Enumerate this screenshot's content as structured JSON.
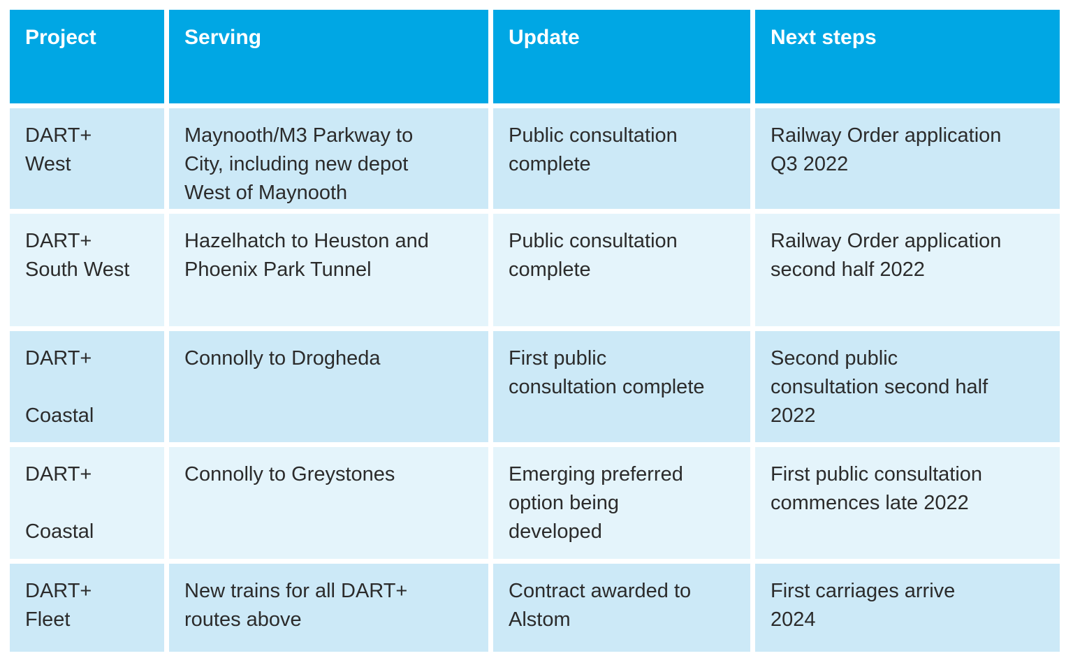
{
  "table": {
    "columns": {
      "project": "Project",
      "serving": "Serving",
      "update": "Update",
      "next_steps": "Next steps"
    },
    "rows": [
      {
        "project": "DART+\nWest",
        "serving": "Maynooth/M3 Parkway to\nCity, including new depot\nWest of Maynooth",
        "update": "Public consultation\ncomplete",
        "next_steps": "Railway Order application\nQ3 2022"
      },
      {
        "project": "DART+\nSouth West",
        "serving": "Hazelhatch to Heuston and\nPhoenix Park Tunnel",
        "update": "Public consultation\ncomplete",
        "next_steps": "Railway Order application\nsecond half 2022"
      },
      {
        "project": "DART+\n\nCoastal",
        "serving": "Connolly to Drogheda",
        "update": "First public\nconsultation complete",
        "next_steps": "Second public\nconsultation second half\n2022"
      },
      {
        "project": "DART+\n\nCoastal",
        "serving": "Connolly to Greystones",
        "update": "Emerging preferred\noption being\ndeveloped",
        "next_steps": "First public consultation\ncommences late 2022"
      },
      {
        "project": "DART+\nFleet",
        "serving": "New trains for all DART+\nroutes above",
        "update": "Contract awarded to\nAlstom",
        "next_steps": "First carriages arrive\n2024"
      }
    ]
  },
  "colors": {
    "header_bg": "#00a7e4",
    "row_odd_bg": "#cce9f7",
    "row_even_bg": "#e4f4fb",
    "header_text": "#ffffff",
    "body_text": "#2b2b2b",
    "page_bg": "#ffffff"
  }
}
